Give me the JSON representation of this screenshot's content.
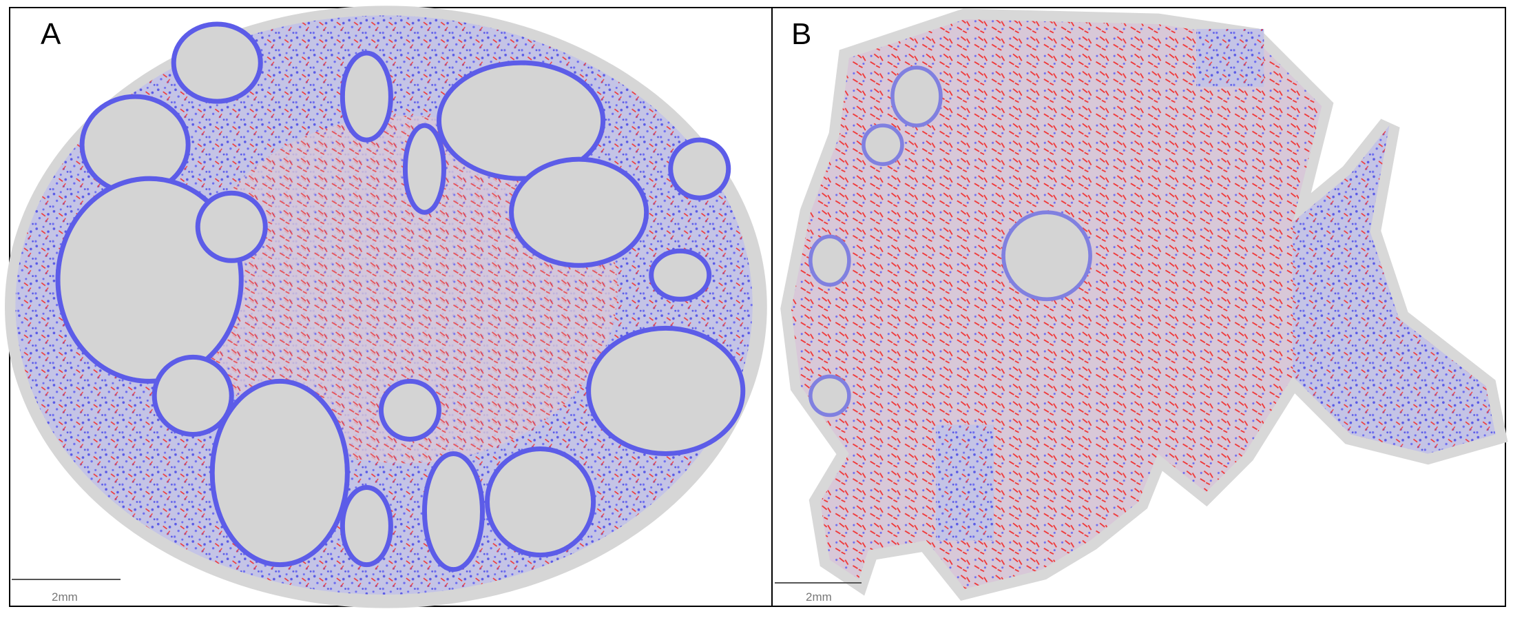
{
  "panels": [
    {
      "label": "A",
      "scale_bar": "2mm"
    },
    {
      "label": "B",
      "scale_bar": "2mm"
    }
  ]
}
